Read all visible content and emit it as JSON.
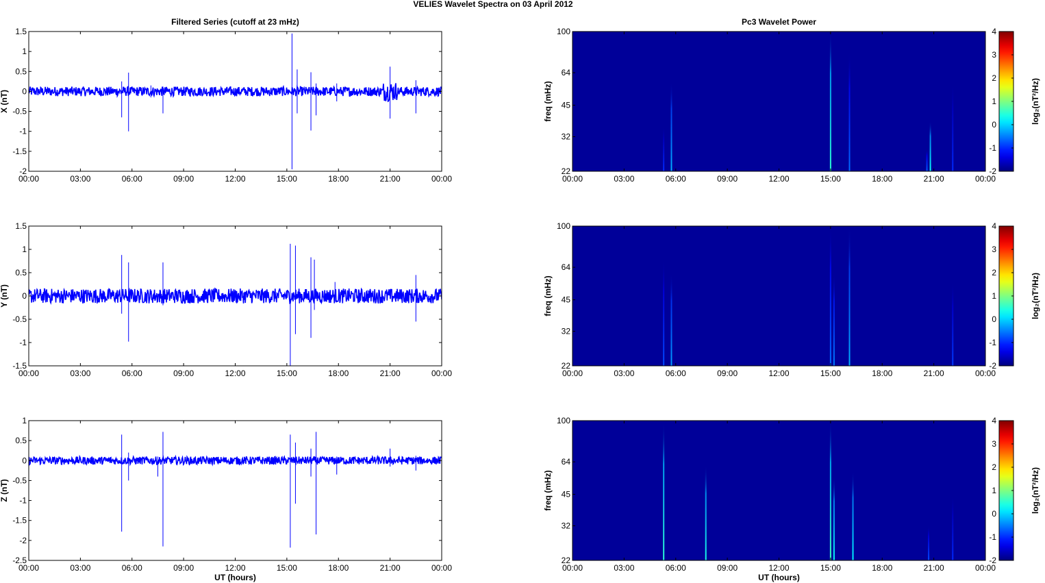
{
  "figure": {
    "title": "VELIES Wavelet Spectra on 03 April     2012"
  },
  "colors": {
    "trace": "#0000ff",
    "background_power": "#00008f",
    "axes": "#000000"
  },
  "chart_data": [
    {
      "type": "line",
      "id": "x-series",
      "title": "Filtered Series (cutoff at 23 mHz)",
      "xlabel": "",
      "ylabel": "X (nT)",
      "xlim": [
        0,
        24
      ],
      "ylim": [
        -2,
        1.5
      ],
      "xticks": [
        "00:00",
        "03:00",
        "06:00",
        "09:00",
        "12:00",
        "15:00",
        "18:00",
        "21:00",
        "00:00"
      ],
      "yticks": [
        -2,
        -1.5,
        -1,
        -0.5,
        0,
        0.5,
        1,
        1.5
      ],
      "ytick_labels": [
        "-2",
        "-1.5",
        "-1",
        "-0.5",
        "0",
        "0.5",
        "1",
        "1.5"
      ],
      "noise_amplitude": 0.12,
      "spikes": [
        {
          "x": 5.4,
          "ymin": -0.65,
          "ymax": 0.25
        },
        {
          "x": 5.8,
          "ymin": -1.0,
          "ymax": 0.47
        },
        {
          "x": 7.1,
          "ymin": -0.15,
          "ymax": 0.15
        },
        {
          "x": 7.8,
          "ymin": -0.55,
          "ymax": 0.12
        },
        {
          "x": 15.3,
          "ymin": -1.95,
          "ymax": 1.45
        },
        {
          "x": 15.6,
          "ymin": -0.55,
          "ymax": 0.55
        },
        {
          "x": 16.4,
          "ymin": -0.98,
          "ymax": 0.48
        },
        {
          "x": 16.7,
          "ymin": -0.6,
          "ymax": 0.2
        },
        {
          "x": 17.9,
          "ymin": -0.25,
          "ymax": 0.2
        },
        {
          "x": 21.0,
          "ymin": -0.68,
          "ymax": 0.62
        },
        {
          "x": 22.5,
          "ymin": -0.55,
          "ymax": 0.28
        }
      ],
      "bursts": [
        {
          "x0": 20.6,
          "x1": 21.4,
          "amp": 0.25
        }
      ]
    },
    {
      "type": "line",
      "id": "y-series",
      "title": "",
      "xlabel": "",
      "ylabel": "Y (nT)",
      "xlim": [
        0,
        24
      ],
      "ylim": [
        -1.5,
        1.5
      ],
      "xticks": [
        "00:00",
        "03:00",
        "06:00",
        "09:00",
        "12:00",
        "15:00",
        "18:00",
        "21:00",
        "00:00"
      ],
      "yticks": [
        -1.5,
        -1,
        -0.5,
        0,
        0.5,
        1,
        1.5
      ],
      "ytick_labels": [
        "-1.5",
        "-1",
        "-0.5",
        "0",
        "0.5",
        "1",
        "1.5"
      ],
      "noise_amplitude": 0.16,
      "spikes": [
        {
          "x": 5.4,
          "ymin": -0.38,
          "ymax": 0.88
        },
        {
          "x": 5.8,
          "ymin": -0.98,
          "ymax": 0.72
        },
        {
          "x": 7.8,
          "ymin": -0.2,
          "ymax": 0.72
        },
        {
          "x": 15.2,
          "ymin": -1.5,
          "ymax": 1.12
        },
        {
          "x": 15.5,
          "ymin": -0.82,
          "ymax": 1.08
        },
        {
          "x": 16.4,
          "ymin": -0.9,
          "ymax": 0.83
        },
        {
          "x": 16.6,
          "ymin": -0.3,
          "ymax": 0.78
        },
        {
          "x": 17.8,
          "ymin": -0.12,
          "ymax": 0.3
        },
        {
          "x": 22.5,
          "ymin": -0.55,
          "ymax": 0.45
        }
      ],
      "bursts": []
    },
    {
      "type": "line",
      "id": "z-series",
      "title": "",
      "xlabel": "UT (hours)",
      "ylabel": "Z (nT)",
      "xlim": [
        0,
        24
      ],
      "ylim": [
        -2.5,
        1
      ],
      "xticks": [
        "00:00",
        "03:00",
        "06:00",
        "09:00",
        "12:00",
        "15:00",
        "18:00",
        "21:00",
        "00:00"
      ],
      "yticks": [
        -2.5,
        -2,
        -1.5,
        -1,
        -0.5,
        0,
        0.5,
        1
      ],
      "ytick_labels": [
        "-2.5",
        "-2",
        "-1.5",
        "-1",
        "-0.5",
        "0",
        "0.5",
        "1"
      ],
      "noise_amplitude": 0.1,
      "spikes": [
        {
          "x": 5.4,
          "ymin": -1.78,
          "ymax": 0.65
        },
        {
          "x": 5.8,
          "ymin": -0.5,
          "ymax": 0.2
        },
        {
          "x": 7.5,
          "ymin": -0.4,
          "ymax": 0.1
        },
        {
          "x": 7.8,
          "ymin": -2.15,
          "ymax": 0.72
        },
        {
          "x": 15.2,
          "ymin": -2.18,
          "ymax": 0.65
        },
        {
          "x": 15.5,
          "ymin": -1.08,
          "ymax": 0.45
        },
        {
          "x": 16.4,
          "ymin": -0.4,
          "ymax": 0.3
        },
        {
          "x": 16.7,
          "ymin": -1.85,
          "ymax": 0.72
        },
        {
          "x": 17.9,
          "ymin": -0.35,
          "ymax": 0.1
        },
        {
          "x": 21.0,
          "ymin": -0.15,
          "ymax": 0.3
        },
        {
          "x": 22.5,
          "ymin": -0.25,
          "ymax": 0.12
        }
      ],
      "bursts": []
    },
    {
      "type": "heatmap",
      "id": "x-power",
      "title": "Pc3 Wavelet Power",
      "xlabel": "",
      "ylabel": "freq (mHz)",
      "xlim": [
        0,
        24
      ],
      "ylim_log2": [
        22,
        100
      ],
      "xticks": [
        "00:00",
        "03:00",
        "06:00",
        "09:00",
        "12:00",
        "15:00",
        "18:00",
        "21:00",
        "00:00"
      ],
      "yticks": [
        22,
        32,
        45,
        64,
        100
      ],
      "ytick_labels": [
        "22",
        "32",
        "45",
        "64",
        "100"
      ],
      "colorbar": {
        "label": "log₂(nT²/Hz)",
        "min": -2,
        "max": 4,
        "ticks": [
          -2,
          -1,
          0,
          1,
          2,
          3,
          4
        ],
        "tick_labels": [
          "-2",
          "-1",
          "0",
          "1",
          "2",
          "3",
          "4"
        ]
      },
      "background_level": -1.85,
      "streaks": [
        {
          "x": 5.3,
          "fmax": 36,
          "level": -1.0
        },
        {
          "x": 5.75,
          "fmax": 58,
          "level": -0.2
        },
        {
          "x": 15.0,
          "fmax": 100,
          "level": 0.5
        },
        {
          "x": 16.1,
          "fmax": 80,
          "level": -0.6
        },
        {
          "x": 20.6,
          "fmax": 28,
          "level": -0.7
        },
        {
          "x": 20.8,
          "fmax": 38,
          "level": 0.3
        },
        {
          "x": 22.1,
          "fmax": 58,
          "level": -1.0
        }
      ]
    },
    {
      "type": "heatmap",
      "id": "y-power",
      "title": "",
      "xlabel": "",
      "ylabel": "freq (mHz)",
      "xlim": [
        0,
        24
      ],
      "ylim_log2": [
        22,
        100
      ],
      "xticks": [
        "00:00",
        "03:00",
        "06:00",
        "09:00",
        "12:00",
        "15:00",
        "18:00",
        "21:00",
        "00:00"
      ],
      "yticks": [
        22,
        32,
        45,
        64,
        100
      ],
      "ytick_labels": [
        "22",
        "32",
        "45",
        "64",
        "100"
      ],
      "colorbar": {
        "label": "log₂(nT²/Hz)",
        "min": -2,
        "max": 4,
        "ticks": [
          -2,
          -1,
          0,
          1,
          2,
          3,
          4
        ],
        "tick_labels": [
          "-2",
          "-1",
          "0",
          "1",
          "2",
          "3",
          "4"
        ]
      },
      "background_level": -1.85,
      "streaks": [
        {
          "x": 5.3,
          "fmax": 70,
          "level": -0.8
        },
        {
          "x": 5.75,
          "fmax": 60,
          "level": -0.3
        },
        {
          "x": 15.0,
          "fmax": 100,
          "level": -0.6
        },
        {
          "x": 15.2,
          "fmax": 60,
          "level": -0.5
        },
        {
          "x": 16.1,
          "fmax": 100,
          "level": -0.2
        },
        {
          "x": 22.1,
          "fmax": 55,
          "level": -0.9
        }
      ]
    },
    {
      "type": "heatmap",
      "id": "z-power",
      "title": "",
      "xlabel": "UT (hours)",
      "ylabel": "freq (mHz)",
      "xlim": [
        0,
        24
      ],
      "ylim_log2": [
        22,
        100
      ],
      "xticks": [
        "00:00",
        "03:00",
        "06:00",
        "09:00",
        "12:00",
        "15:00",
        "18:00",
        "21:00",
        "00:00"
      ],
      "yticks": [
        22,
        32,
        45,
        64,
        100
      ],
      "ytick_labels": [
        "22",
        "32",
        "45",
        "64",
        "100"
      ],
      "colorbar": {
        "label": "log₂(nT²/Hz)",
        "min": -2,
        "max": 4,
        "ticks": [
          -2,
          -1,
          0,
          1,
          2,
          3,
          4
        ],
        "tick_labels": [
          "-2",
          "-1",
          "0",
          "1",
          "2",
          "3",
          "4"
        ]
      },
      "background_level": -1.85,
      "streaks": [
        {
          "x": 5.3,
          "fmax": 98,
          "level": 0.5
        },
        {
          "x": 7.75,
          "fmax": 62,
          "level": 0.4
        },
        {
          "x": 15.0,
          "fmax": 100,
          "level": 0.6
        },
        {
          "x": 15.2,
          "fmax": 55,
          "level": 0.3
        },
        {
          "x": 16.3,
          "fmax": 58,
          "level": 0.2
        },
        {
          "x": 20.7,
          "fmax": 32,
          "level": -0.8
        },
        {
          "x": 22.1,
          "fmax": 45,
          "level": -1.0
        }
      ]
    }
  ]
}
